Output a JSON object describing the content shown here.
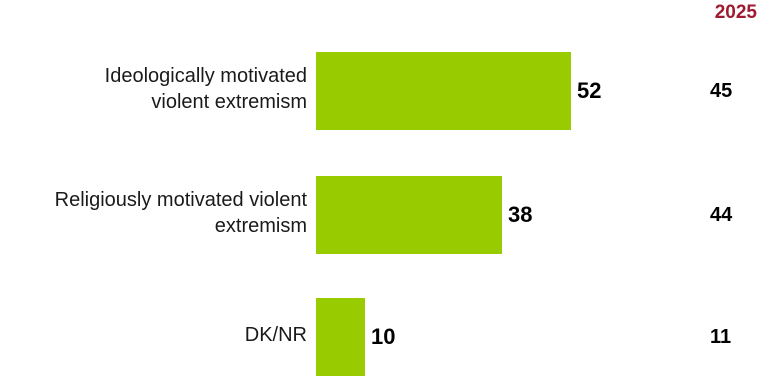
{
  "chart_data": {
    "type": "bar",
    "orientation": "horizontal",
    "categories": [
      "Ideologically motivated violent extremism",
      "Religiously motivated violent extremism",
      "DK/NR"
    ],
    "category_lines": [
      [
        "Ideologically motivated",
        "violent extremism"
      ],
      [
        "Religiously motivated violent",
        "extremism"
      ],
      [
        "DK/NR"
      ]
    ],
    "values": [
      52,
      38,
      10
    ],
    "comparison": {
      "header": "2025",
      "values": [
        45,
        44,
        11
      ]
    },
    "bar_color": "#99cc00",
    "comparison_header_color": "#9e1b32",
    "xlim": [
      0,
      100
    ],
    "grid": false,
    "legend": "none"
  }
}
